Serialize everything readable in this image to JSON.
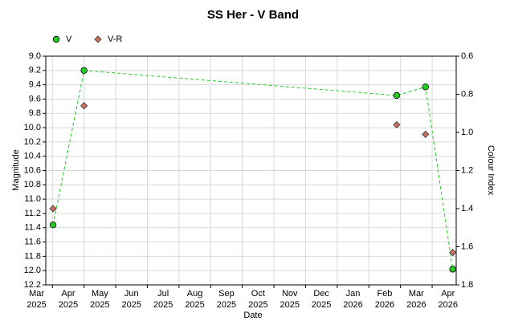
{
  "chart_data": {
    "type": "scatter",
    "title": "SS Her - V Band",
    "xlabel": "Date",
    "ylabel": "Magnitude",
    "y2label": "Colour Index",
    "xlim": [
      0.79,
      13.76
    ],
    "xticks": [
      {
        "value": 0,
        "label": "Mar 2025"
      },
      {
        "value": 1,
        "label": "Apr 2025"
      },
      {
        "value": 2,
        "label": "May 2025"
      },
      {
        "value": 3,
        "label": "Jun 2025"
      },
      {
        "value": 4,
        "label": "Jul 2025"
      },
      {
        "value": 5,
        "label": "Aug 2025"
      },
      {
        "value": 6,
        "label": "Sep 2025"
      },
      {
        "value": 7,
        "label": "Oct 2025"
      },
      {
        "value": 8,
        "label": "Nov 2025"
      },
      {
        "value": 9,
        "label": "Dec 2025"
      },
      {
        "value": 10,
        "label": "Jan 2026"
      },
      {
        "value": 11,
        "label": "Feb 2026"
      },
      {
        "value": 12,
        "label": "Mar 2026"
      },
      {
        "value": 13,
        "label": "Apr 2026"
      }
    ],
    "ylim": [
      12.2,
      9.0
    ],
    "yticks": [
      {
        "value": 9,
        "label": "9.0"
      },
      9.2,
      9.4,
      9.6,
      9.8,
      {
        "value": 10,
        "label": "10.0"
      },
      10.2,
      10.4,
      10.6,
      10.8,
      {
        "value": 11,
        "label": "11.0"
      },
      11.2,
      11.4,
      11.6,
      11.8,
      {
        "value": 12,
        "label": "12.0"
      },
      12.2
    ],
    "y2lim": [
      1.8,
      0.6
    ],
    "y2ticks": [
      0.6,
      0.8,
      {
        "value": 1,
        "label": "1.0"
      },
      1.2,
      1.4,
      1.6,
      1.8
    ],
    "grid": true,
    "series": [
      {
        "name": "V",
        "color": "#22cc22",
        "marker": "circle",
        "line": "dashed",
        "x": [
          1.02,
          2.0,
          11.88,
          12.79,
          13.65
        ],
        "values": [
          11.36,
          9.2,
          9.55,
          9.43,
          11.98
        ]
      },
      {
        "name": "V-R",
        "color": "#cc6f5f",
        "marker": "diamond",
        "axis": "y2",
        "x": [
          1.02,
          2.0,
          11.88,
          12.79,
          13.65
        ],
        "values": [
          1.4,
          0.86,
          0.96,
          1.01,
          1.63
        ]
      }
    ]
  }
}
